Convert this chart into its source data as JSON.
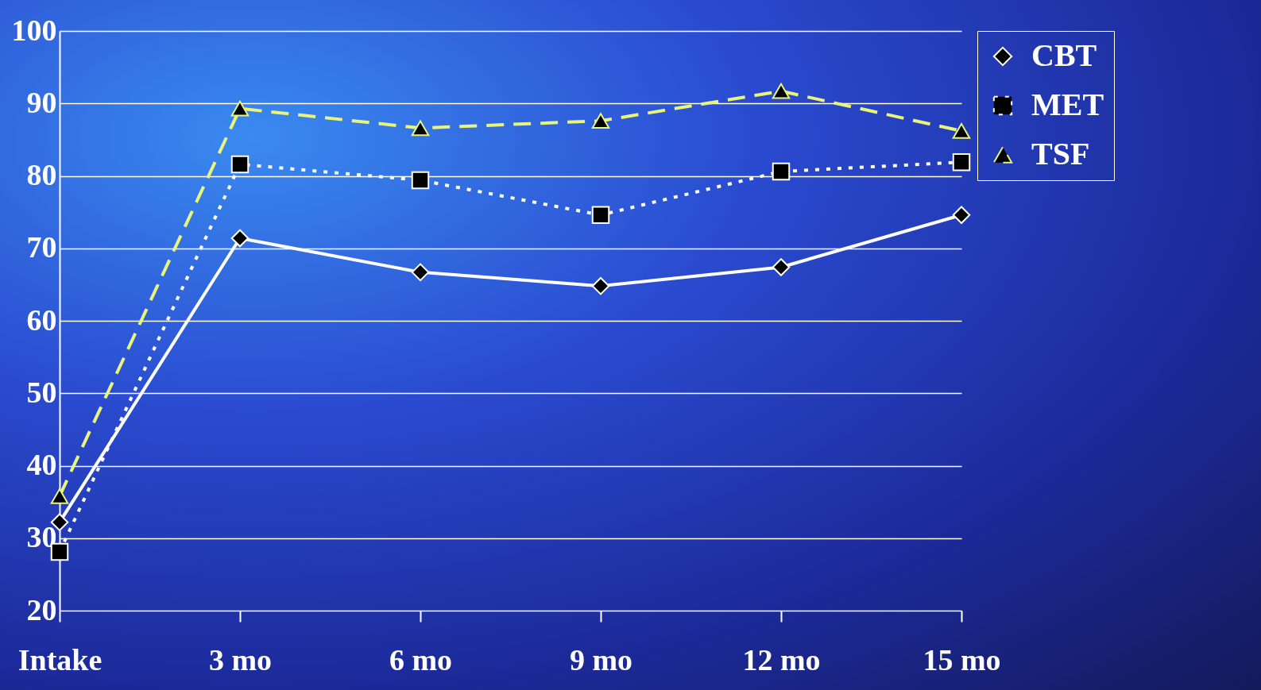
{
  "chart_data": {
    "type": "line",
    "categories": [
      "Intake",
      "3 mo",
      "6 mo",
      "9 mo",
      "12 mo",
      "15 mo"
    ],
    "series": [
      {
        "name": "CBT",
        "color": "#ffffff",
        "marker": "diamond",
        "line_style": "solid",
        "values": [
          32.2,
          71.4,
          66.7,
          64.8,
          67.4,
          74.6
        ]
      },
      {
        "name": "MET",
        "color": "#ffffff",
        "marker": "square",
        "line_style": "dotted",
        "values": [
          28.1,
          81.6,
          79.4,
          74.6,
          80.6,
          81.9
        ]
      },
      {
        "name": "TSF",
        "color": "#e8f57a",
        "marker": "triangle",
        "line_style": "dashed",
        "values": [
          35.8,
          89.3,
          86.6,
          87.6,
          91.7,
          86.2
        ]
      }
    ],
    "ylim": [
      20,
      100
    ],
    "yticks": [
      20,
      30,
      40,
      50,
      60,
      70,
      80,
      90,
      100
    ],
    "grid": "y",
    "legend": "right"
  }
}
